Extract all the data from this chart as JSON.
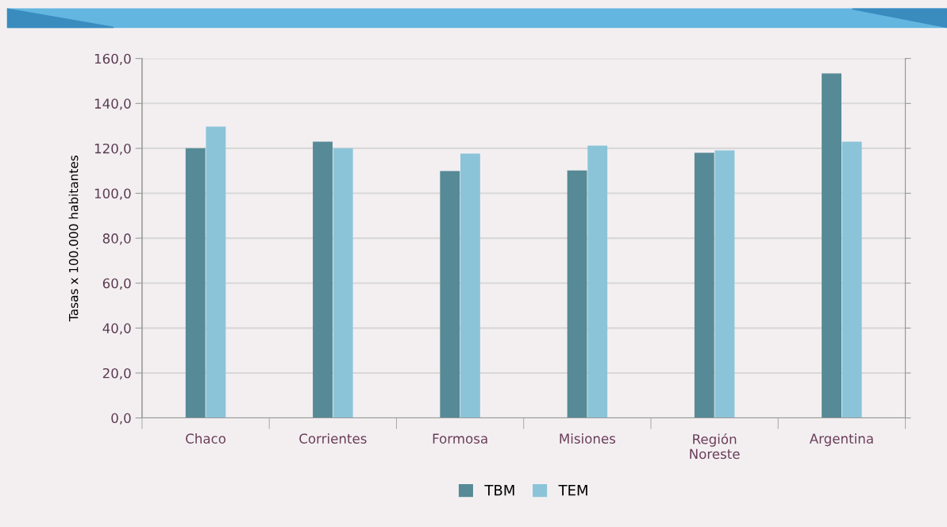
{
  "chart_data": {
    "type": "bar",
    "ylabel": "Tasas x 100.000 habitantes",
    "categories": [
      "Chaco",
      "Corrientes",
      "Formosa",
      "Misiones",
      "Región\nNoreste",
      "Argentina"
    ],
    "series": [
      {
        "name": "TBM",
        "color": "#568a96",
        "values": [
          120.1,
          123.0,
          109.9,
          110.2,
          118.0,
          153.4
        ]
      },
      {
        "name": "TEM",
        "color": "#8bc4d8",
        "values": [
          129.7,
          120.1,
          117.7,
          121.2,
          119.1,
          123.0
        ]
      }
    ],
    "ylim": [
      0,
      160
    ],
    "yticks": [
      {
        "value": 0,
        "label": "0,0"
      },
      {
        "value": 20,
        "label": "20,0"
      },
      {
        "value": 40,
        "label": "40,0"
      },
      {
        "value": 60,
        "label": "60,0"
      },
      {
        "value": 80,
        "label": "80,0"
      },
      {
        "value": 100,
        "label": "100,0"
      },
      {
        "value": 120,
        "label": "120,0"
      },
      {
        "value": 140,
        "label": "140,0"
      },
      {
        "value": 160,
        "label": "160,0"
      }
    ],
    "grid": "y",
    "legend": "bottom"
  }
}
